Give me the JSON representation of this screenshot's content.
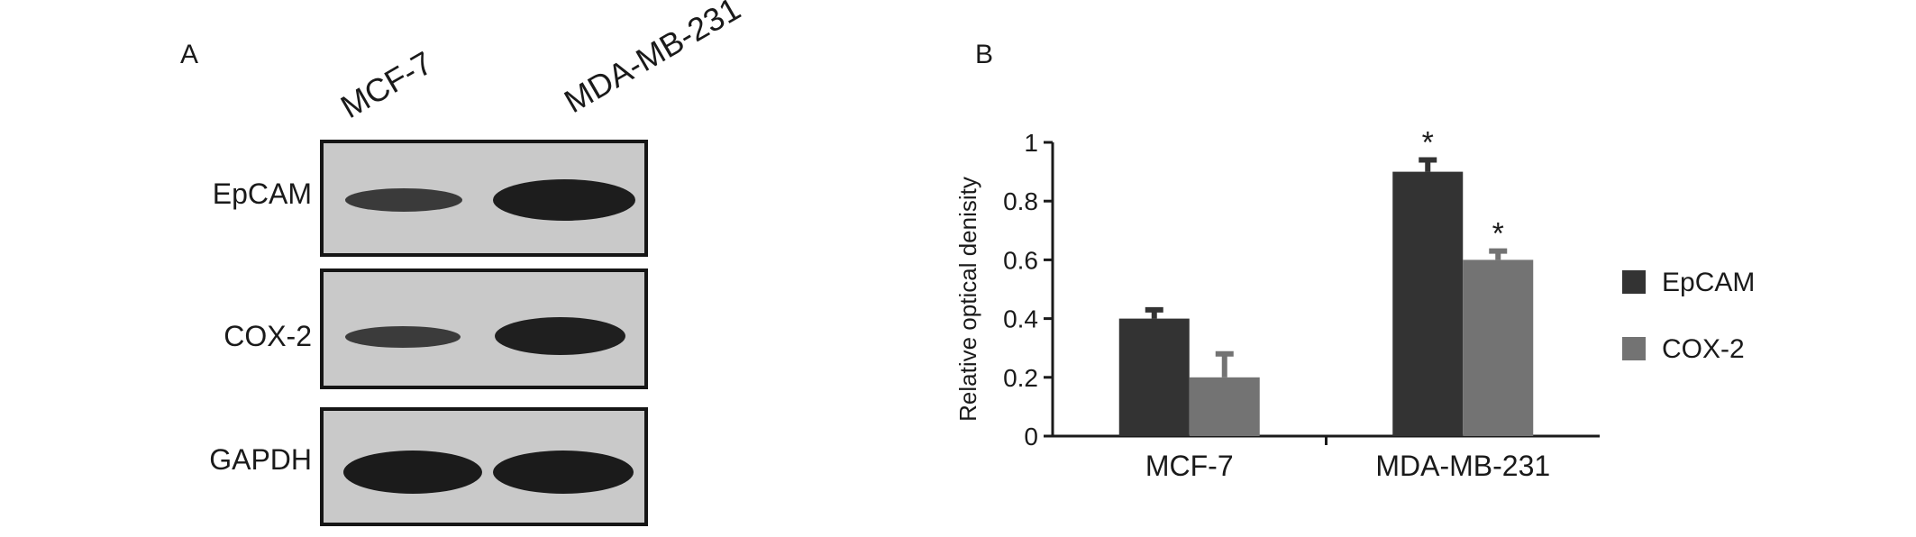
{
  "panel_a": {
    "letter": "A",
    "lanes": [
      "MCF-7",
      "MDA-MB-231"
    ],
    "blots": [
      {
        "label": "EpCAM"
      },
      {
        "label": "COX-2"
      },
      {
        "label": "GAPDH"
      }
    ]
  },
  "panel_b": {
    "letter": "B"
  },
  "chart_data": {
    "type": "bar",
    "categories": [
      "MCF-7",
      "MDA-MB-231"
    ],
    "series": [
      {
        "name": "EpCAM",
        "values": [
          0.4,
          0.9
        ],
        "errors": [
          0.03,
          0.04
        ],
        "color": "#333333"
      },
      {
        "name": "COX-2",
        "values": [
          0.2,
          0.6
        ],
        "errors": [
          0.08,
          0.03
        ],
        "color": "#737373"
      }
    ],
    "significance": [
      {
        "category": "MDA-MB-231",
        "series": "EpCAM",
        "label": "*"
      },
      {
        "category": "MDA-MB-231",
        "series": "COX-2",
        "label": "*"
      }
    ],
    "ylabel": "Relative optical denisity",
    "xlabel": "",
    "ylim": [
      0,
      1
    ],
    "yticks": [
      0,
      0.2,
      0.4,
      0.6,
      0.8,
      1
    ],
    "ytick_labels": [
      "0",
      "0.2",
      "0.4",
      "0.6",
      "0.8",
      "1"
    ],
    "grid": false,
    "legend_position": "right"
  }
}
